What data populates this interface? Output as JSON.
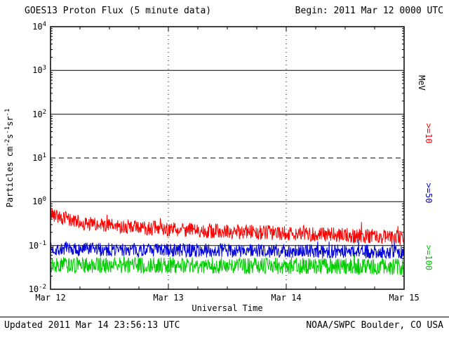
{
  "header": {
    "title": "GOES13 Proton Flux (5 minute data)",
    "begin_label": "Begin: 2011 Mar 12 0000 UTC"
  },
  "footer": {
    "updated": "Updated 2011 Mar 14 23:56:13 UTC",
    "credit": "NOAA/SWPC Boulder, CO USA"
  },
  "chart_data": {
    "type": "line",
    "title": "GOES13 Proton Flux (5 minute data)",
    "xlabel": "Universal Time",
    "ylabel_parts": [
      {
        "text": "Particles cm"
      },
      {
        "sup": "-2"
      },
      {
        "text": "s"
      },
      {
        "sup": "-1"
      },
      {
        "text": "sr"
      },
      {
        "sup": "-1"
      }
    ],
    "x_tick_labels": [
      "Mar 12",
      "Mar 13",
      "Mar 14",
      "Mar 15"
    ],
    "x_range_days": 3,
    "ylim": [
      0.01,
      10000
    ],
    "y_exponent_ticks": [
      4,
      3,
      2,
      1,
      0,
      -1,
      -2
    ],
    "y_scale": "log",
    "grid": {
      "solid_hlines": [
        1000,
        100,
        1,
        0.1
      ],
      "dashed_hlines": [
        10
      ],
      "dotted_vlines_days": [
        1,
        2
      ]
    },
    "right_axis_labels": [
      {
        "text": "MeV",
        "color": "#000000"
      },
      {
        "text": ">=10",
        "color": "#fe0000"
      },
      {
        "text": ">=50",
        "color": "#0000dd"
      },
      {
        "text": ">=100",
        "color": "#00cc00"
      }
    ],
    "series": [
      {
        "name": ">=10 MeV",
        "color": "#fe0000",
        "seed": 42,
        "noise_dex": 0.17,
        "spike_prob": 0.03,
        "spike_dex": 0.22,
        "anchor_days": [
          0,
          0.08,
          0.25,
          0.5,
          1.0,
          1.5,
          2.0,
          2.5,
          3.0
        ],
        "anchor_flux": [
          0.55,
          0.45,
          0.32,
          0.28,
          0.24,
          0.21,
          0.19,
          0.17,
          0.15
        ]
      },
      {
        "name": ">=50 MeV",
        "color": "#0000dd",
        "seed": 7,
        "noise_dex": 0.16,
        "spike_prob": 0.01,
        "spike_dex": 0.15,
        "anchor_days": [
          0,
          1,
          2,
          3
        ],
        "anchor_flux": [
          0.082,
          0.078,
          0.075,
          0.071
        ]
      },
      {
        "name": ">=100 MeV",
        "color": "#00cc00",
        "seed": 13,
        "noise_dex": 0.19,
        "spike_prob": 0.01,
        "spike_dex": 0.12,
        "anchor_days": [
          0,
          1,
          2,
          3
        ],
        "anchor_flux": [
          0.036,
          0.035,
          0.034,
          0.033
        ]
      }
    ]
  }
}
